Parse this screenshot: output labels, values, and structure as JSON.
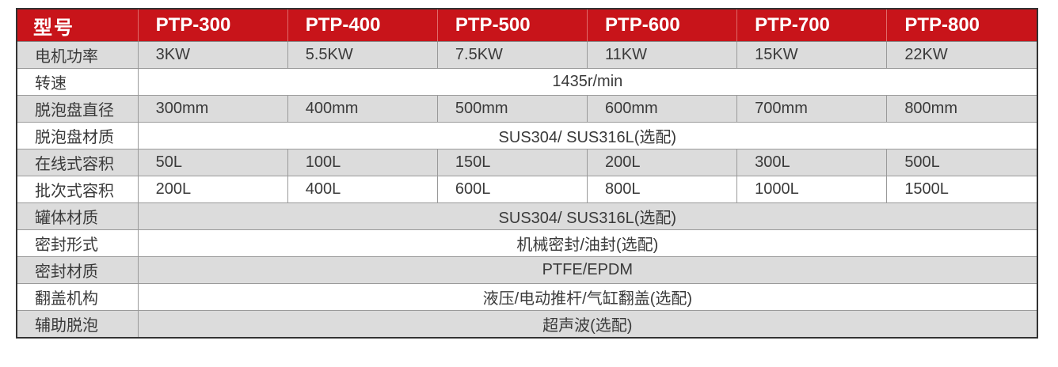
{
  "header": {
    "label": "型号",
    "models": [
      "PTP-300",
      "PTP-400",
      "PTP-500",
      "PTP-600",
      "PTP-700",
      "PTP-800"
    ]
  },
  "rows": [
    {
      "label": "电机功率",
      "cells": [
        "3KW",
        "5.5KW",
        "7.5KW",
        "11KW",
        "15KW",
        "22KW"
      ]
    },
    {
      "label": "转速",
      "span": "1435r/min"
    },
    {
      "label": "脱泡盘直径",
      "cells": [
        "300mm",
        "400mm",
        "500mm",
        "600mm",
        "700mm",
        "800mm"
      ]
    },
    {
      "label": "脱泡盘材质",
      "span": "SUS304/ SUS316L(选配)"
    },
    {
      "label": "在线式容积",
      "cells": [
        "50L",
        "100L",
        "150L",
        "200L",
        "300L",
        "500L"
      ]
    },
    {
      "label": "批次式容积",
      "cells": [
        "200L",
        "400L",
        "600L",
        "800L",
        "1000L",
        "1500L"
      ]
    },
    {
      "label": "罐体材质",
      "span": "SUS304/ SUS316L(选配)"
    },
    {
      "label": "密封形式",
      "span": "机械密封/油封(选配)"
    },
    {
      "label": "密封材质",
      "span": "PTFE/EPDM"
    },
    {
      "label": "翻盖机构",
      "span": "液压/电动推杆/气缸翻盖(选配)"
    },
    {
      "label": "辅助脱泡",
      "span": "超声波(选配)"
    }
  ],
  "colors": {
    "header_bg": "#c8141a",
    "header_text": "#ffffff",
    "row_gray": "#dcdcdc",
    "row_white": "#ffffff"
  }
}
